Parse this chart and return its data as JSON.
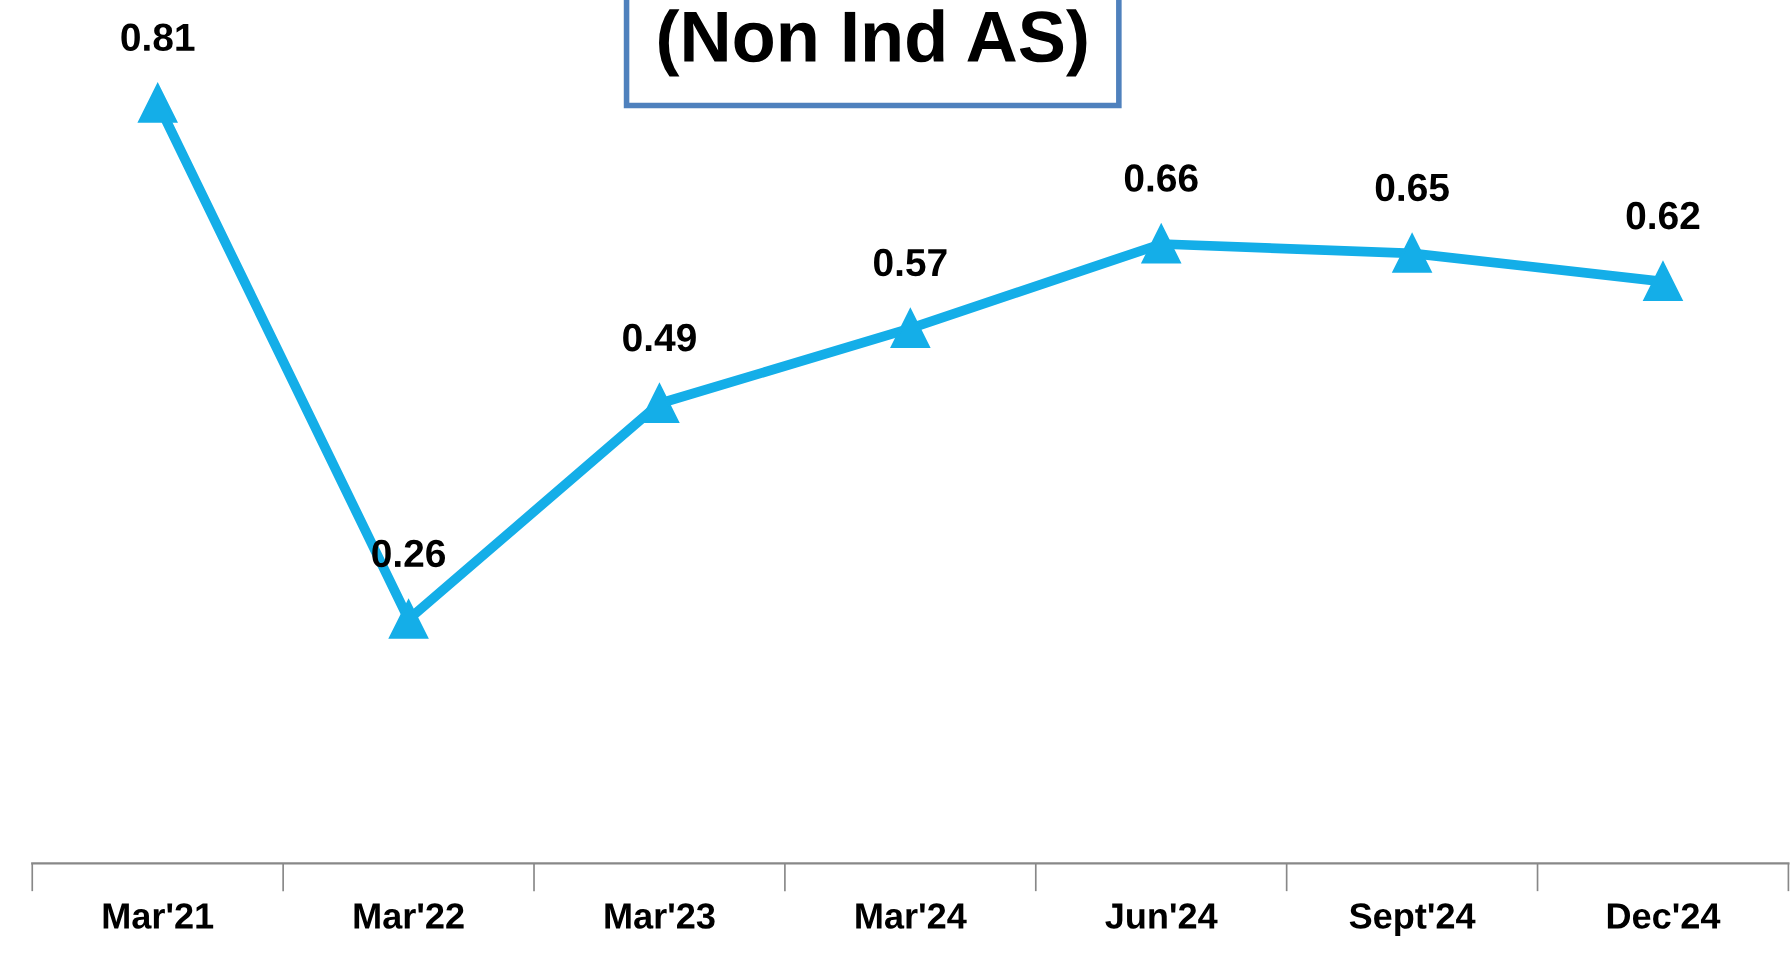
{
  "chart_data": {
    "type": "line",
    "title": "(Non Ind AS)",
    "categories": [
      "Mar'21",
      "Mar'22",
      "Mar'23",
      "Mar'24",
      "Jun'24",
      "Sept'24",
      "Dec'24"
    ],
    "series": [
      {
        "color": "#14aee8",
        "values": [
          0.81,
          0.26,
          0.49,
          0.57,
          0.66,
          0.65,
          0.62
        ]
      }
    ],
    "marker": "triangle",
    "line_style": "solid",
    "data_labels": true,
    "grid": false,
    "legend": false,
    "tick_labels": "x"
  }
}
